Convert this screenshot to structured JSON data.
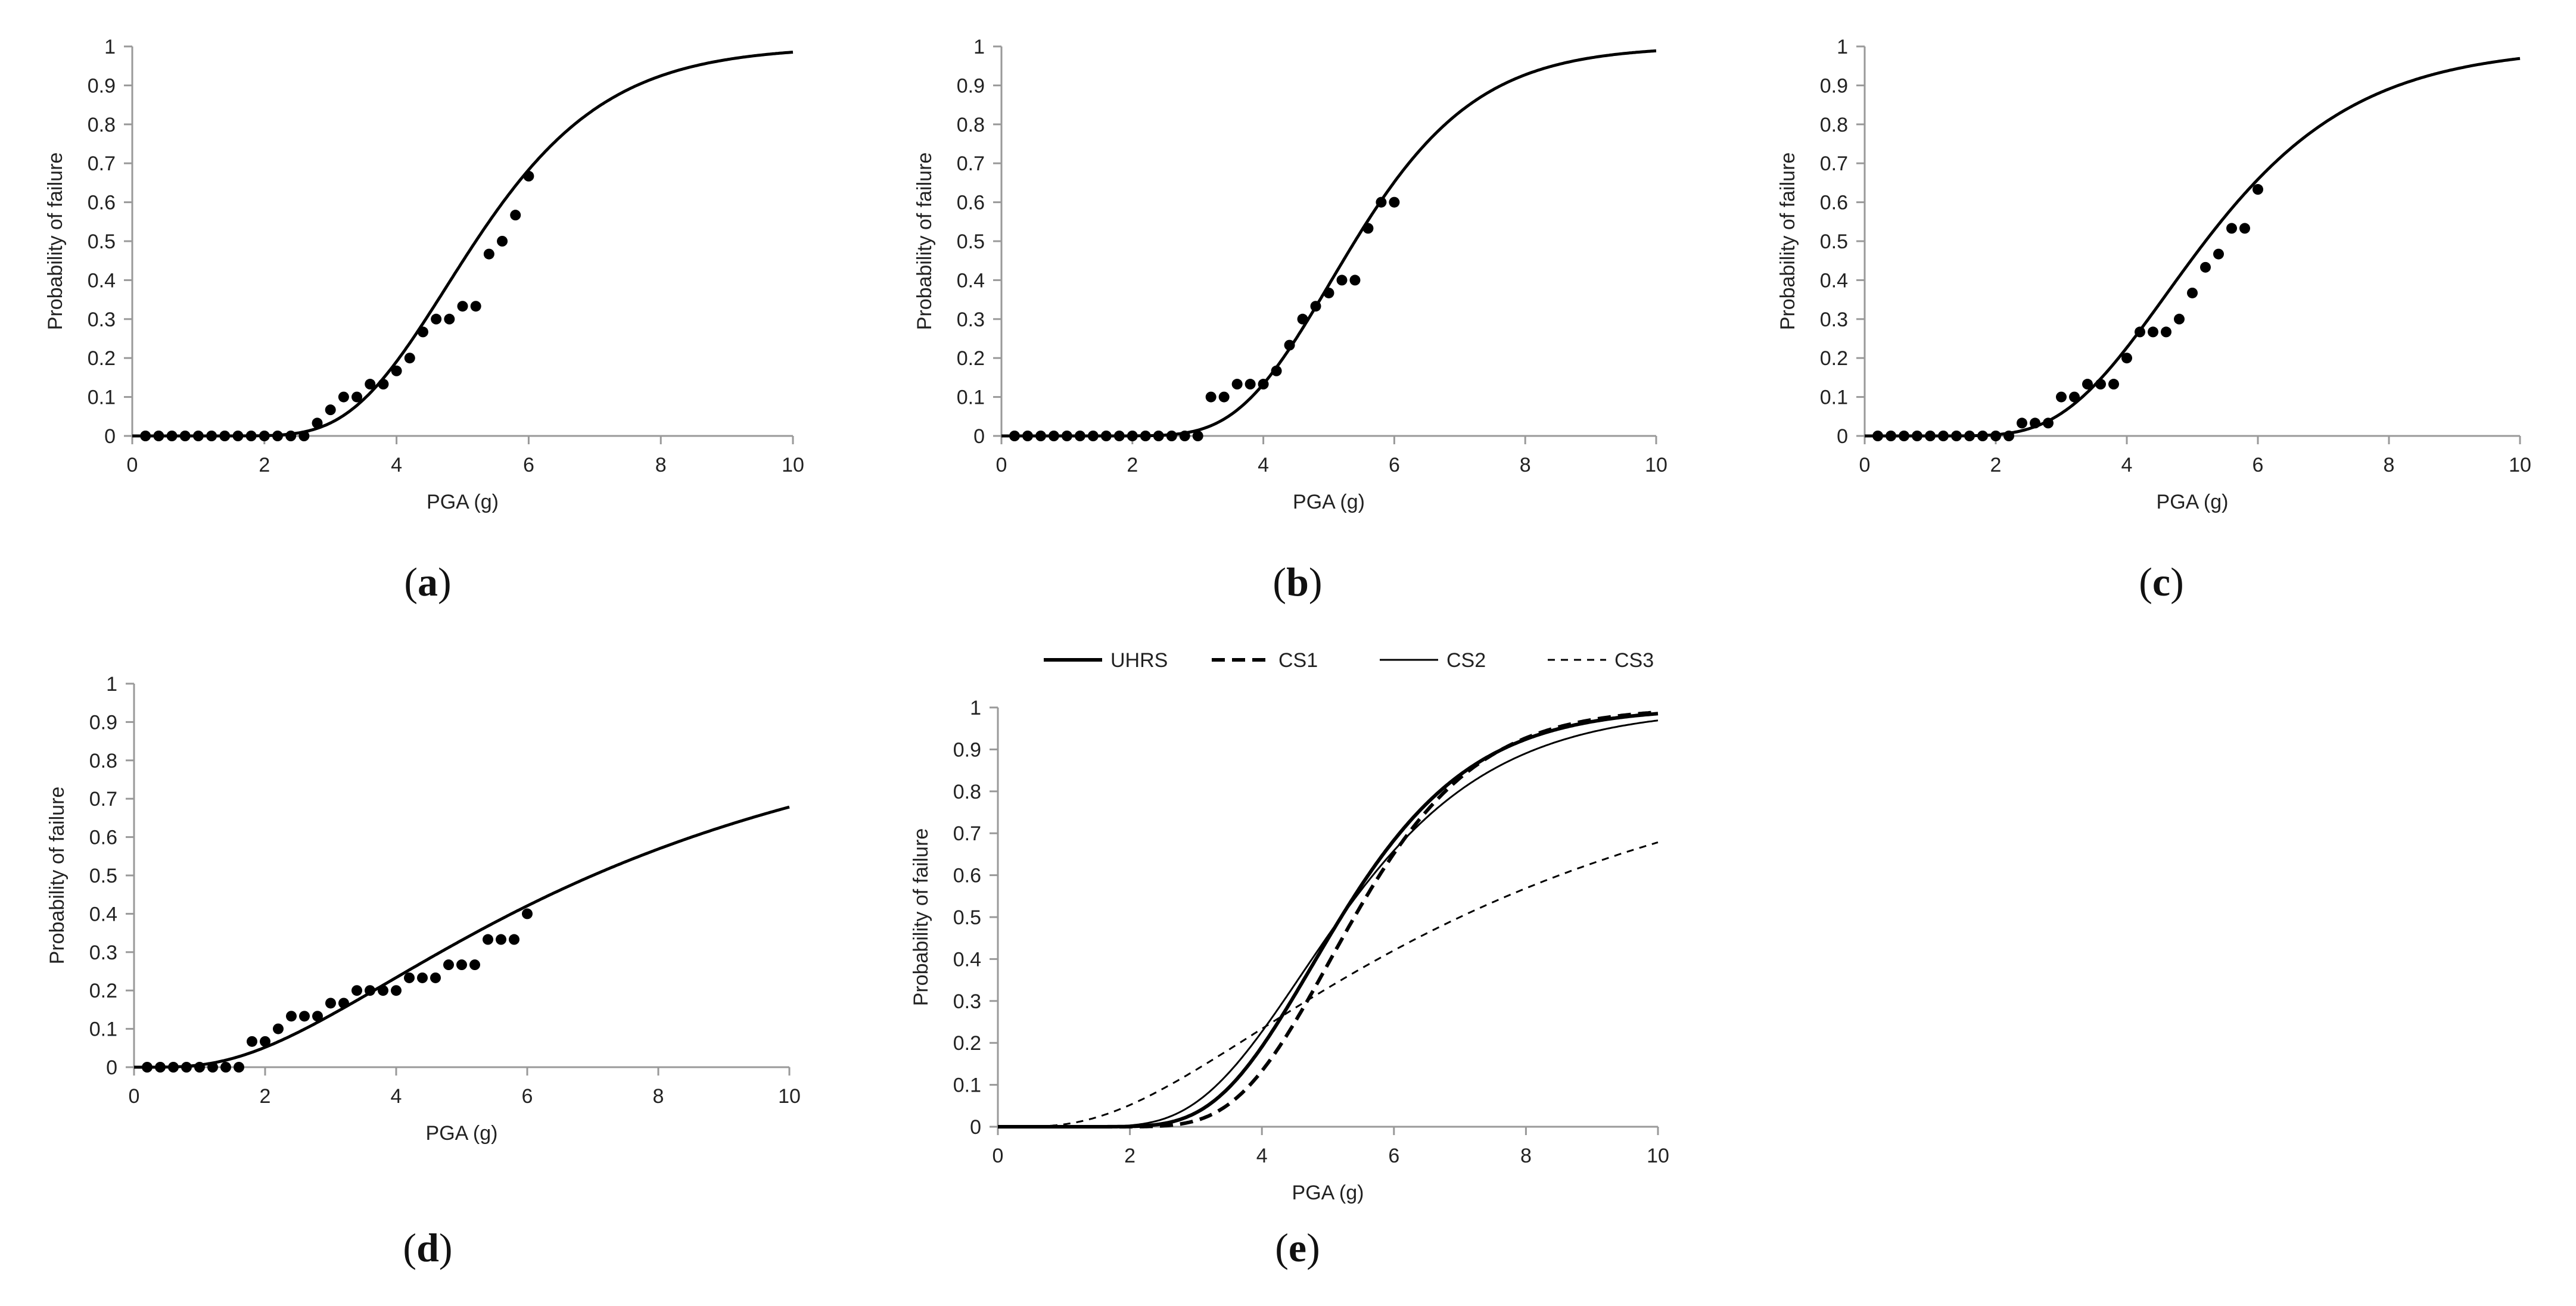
{
  "chart_data": [
    {
      "type": "scatter",
      "panel": "a",
      "label": "(a)",
      "xlabel": "PGA (g)",
      "ylabel": "Probability of failure",
      "xlim": [
        0,
        10
      ],
      "ylim": [
        0,
        1
      ],
      "xticks": [
        0,
        2,
        4,
        6,
        8,
        10
      ],
      "yticks": [
        0,
        0.1,
        0.2,
        0.3,
        0.4,
        0.5,
        0.6,
        0.7,
        0.8,
        0.9,
        1
      ],
      "fit": {
        "median": 5.2,
        "beta": 0.3
      },
      "points": {
        "x": [
          0.2,
          0.4,
          0.6,
          0.8,
          1.0,
          1.2,
          1.4,
          1.6,
          1.8,
          2.0,
          2.2,
          2.4,
          2.6,
          2.8,
          3.0,
          3.2,
          3.4,
          3.6,
          3.8,
          4.0,
          4.2,
          4.4,
          4.6,
          4.8,
          5.0,
          5.2,
          5.4,
          5.6,
          5.8,
          6.0
        ],
        "y": [
          0,
          0,
          0,
          0,
          0,
          0,
          0,
          0,
          0,
          0,
          0,
          0,
          0,
          0.033,
          0.067,
          0.1,
          0.1,
          0.133,
          0.133,
          0.167,
          0.2,
          0.267,
          0.3,
          0.3,
          0.333,
          0.333,
          0.467,
          0.5,
          0.567,
          0.667
        ]
      }
    },
    {
      "type": "scatter",
      "panel": "b",
      "label": "(b)",
      "xlabel": "PGA (g)",
      "ylabel": "Probability of failure",
      "xlim": [
        0,
        10
      ],
      "ylim": [
        0,
        1
      ],
      "xticks": [
        0,
        2,
        4,
        6,
        8,
        10
      ],
      "yticks": [
        0,
        0.1,
        0.2,
        0.3,
        0.4,
        0.5,
        0.6,
        0.7,
        0.8,
        0.9,
        1
      ],
      "fit": {
        "median": 5.4,
        "beta": 0.27
      },
      "points": {
        "x": [
          0.2,
          0.4,
          0.6,
          0.8,
          1.0,
          1.2,
          1.4,
          1.6,
          1.8,
          2.0,
          2.2,
          2.4,
          2.6,
          2.8,
          3.0,
          3.2,
          3.4,
          3.6,
          3.8,
          4.0,
          4.2,
          4.4,
          4.6,
          4.8,
          5.0,
          5.2,
          5.4,
          5.6,
          5.8,
          6.0
        ],
        "y": [
          0,
          0,
          0,
          0,
          0,
          0,
          0,
          0,
          0,
          0,
          0,
          0,
          0,
          0,
          0,
          0.1,
          0.1,
          0.133,
          0.133,
          0.133,
          0.167,
          0.233,
          0.3,
          0.333,
          0.367,
          0.4,
          0.4,
          0.533,
          0.6,
          0.6
        ]
      }
    },
    {
      "type": "scatter",
      "panel": "c",
      "label": "(c)",
      "xlabel": "PGA (g)",
      "ylabel": "Probability of failure",
      "xlim": [
        0,
        10
      ],
      "ylim": [
        0,
        1
      ],
      "xticks": [
        0,
        2,
        4,
        6,
        8,
        10
      ],
      "yticks": [
        0,
        0.1,
        0.2,
        0.3,
        0.4,
        0.5,
        0.6,
        0.7,
        0.8,
        0.9,
        1
      ],
      "fit": {
        "median": 5.2,
        "beta": 0.35
      },
      "points": {
        "x": [
          0.2,
          0.4,
          0.6,
          0.8,
          1.0,
          1.2,
          1.4,
          1.6,
          1.8,
          2.0,
          2.2,
          2.4,
          2.6,
          2.8,
          3.0,
          3.2,
          3.4,
          3.6,
          3.8,
          4.0,
          4.2,
          4.4,
          4.6,
          4.8,
          5.0,
          5.2,
          5.4,
          5.6,
          5.8,
          6.0
        ],
        "y": [
          0,
          0,
          0,
          0,
          0,
          0,
          0,
          0,
          0,
          0,
          0,
          0.033,
          0.033,
          0.033,
          0.1,
          0.1,
          0.133,
          0.133,
          0.133,
          0.2,
          0.267,
          0.267,
          0.267,
          0.3,
          0.367,
          0.433,
          0.467,
          0.533,
          0.533,
          0.633
        ]
      }
    },
    {
      "type": "scatter",
      "panel": "d",
      "label": "(d)",
      "xlabel": "PGA (g)",
      "ylabel": "Probability of failure",
      "xlim": [
        0,
        10
      ],
      "ylim": [
        0,
        1
      ],
      "xticks": [
        0,
        2,
        4,
        6,
        8,
        10
      ],
      "yticks": [
        0,
        0.1,
        0.2,
        0.3,
        0.4,
        0.5,
        0.6,
        0.7,
        0.8,
        0.9,
        1
      ],
      "fit": {
        "median": 7.0,
        "beta": 0.77
      },
      "points": {
        "x": [
          0.2,
          0.4,
          0.6,
          0.8,
          1.0,
          1.2,
          1.4,
          1.6,
          1.8,
          2.0,
          2.2,
          2.4,
          2.6,
          2.8,
          3.0,
          3.2,
          3.4,
          3.6,
          3.8,
          4.0,
          4.2,
          4.4,
          4.6,
          4.8,
          5.0,
          5.2,
          5.4,
          5.6,
          5.8,
          6.0
        ],
        "y": [
          0,
          0,
          0,
          0,
          0,
          0,
          0,
          0,
          0.067,
          0.067,
          0.1,
          0.133,
          0.133,
          0.133,
          0.167,
          0.167,
          0.2,
          0.2,
          0.2,
          0.2,
          0.233,
          0.233,
          0.233,
          0.267,
          0.267,
          0.267,
          0.333,
          0.333,
          0.333,
          0.4
        ]
      }
    },
    {
      "type": "line",
      "panel": "e",
      "label": "(e)",
      "xlabel": "PGA (g)",
      "ylabel": "Probability of failure",
      "xlim": [
        0,
        10
      ],
      "ylim": [
        0,
        1
      ],
      "xticks": [
        0,
        2,
        4,
        6,
        8,
        10
      ],
      "yticks": [
        0,
        0.1,
        0.2,
        0.3,
        0.4,
        0.5,
        0.6,
        0.7,
        0.8,
        0.9,
        1
      ],
      "legend_position": "top",
      "series": [
        {
          "name": "UHRS",
          "style": "solid-thick",
          "median": 5.2,
          "beta": 0.3
        },
        {
          "name": "CS1",
          "style": "dashed-thick",
          "median": 5.4,
          "beta": 0.27
        },
        {
          "name": "CS2",
          "style": "solid-thin",
          "median": 5.2,
          "beta": 0.35
        },
        {
          "name": "CS3",
          "style": "dashed-thin",
          "median": 7.0,
          "beta": 0.77
        }
      ]
    }
  ]
}
